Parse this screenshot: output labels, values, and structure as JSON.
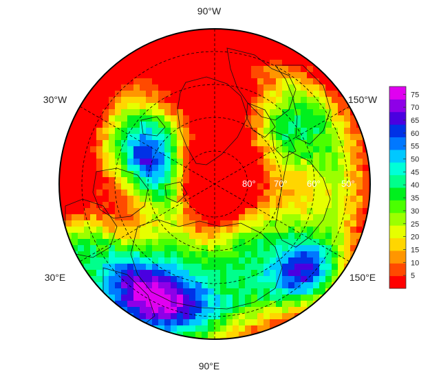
{
  "map": {
    "projection": "north-polar-stereographic",
    "longitude_labels": {
      "top": "90°W",
      "upper_left": "30°W",
      "upper_right": "150°W",
      "lower_left": "30°E",
      "lower_right": "150°E",
      "bottom": "90°E"
    },
    "latitude_labels": [
      "80°",
      "70°",
      "60°",
      "50°"
    ],
    "grid": true,
    "coastlines": true
  },
  "colorbar": {
    "ticks": [
      "75",
      "70",
      "65",
      "60",
      "55",
      "50",
      "45",
      "40",
      "35",
      "30",
      "25",
      "20",
      "15",
      "10",
      "5"
    ],
    "range": [
      0,
      78
    ],
    "colors": [
      "#ff0000",
      "#ff4a00",
      "#ff9600",
      "#ffd600",
      "#e6ff00",
      "#9cff00",
      "#4bff00",
      "#00f01e",
      "#00ff8c",
      "#00ffd8",
      "#00c8ff",
      "#0078ff",
      "#0032e6",
      "#4a00e0",
      "#8e00e8",
      "#e000f0"
    ],
    "placement": "right"
  }
}
